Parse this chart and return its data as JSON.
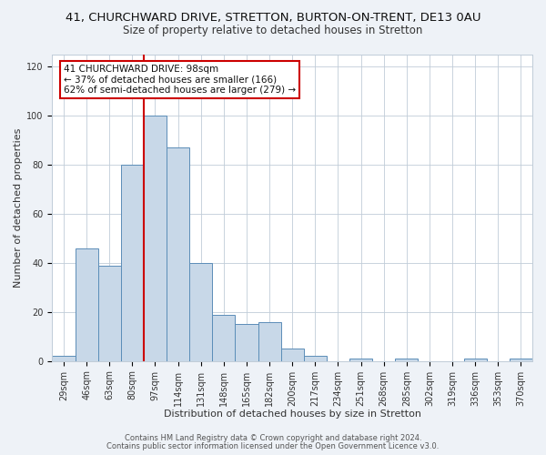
{
  "title": "41, CHURCHWARD DRIVE, STRETTON, BURTON-ON-TRENT, DE13 0AU",
  "subtitle": "Size of property relative to detached houses in Stretton",
  "xlabel": "Distribution of detached houses by size in Stretton",
  "ylabel": "Number of detached properties",
  "bar_labels": [
    "29sqm",
    "46sqm",
    "63sqm",
    "80sqm",
    "97sqm",
    "114sqm",
    "131sqm",
    "148sqm",
    "165sqm",
    "182sqm",
    "200sqm",
    "217sqm",
    "234sqm",
    "251sqm",
    "268sqm",
    "285sqm",
    "302sqm",
    "319sqm",
    "336sqm",
    "353sqm",
    "370sqm"
  ],
  "bar_heights": [
    2,
    46,
    39,
    80,
    100,
    87,
    40,
    19,
    15,
    16,
    5,
    2,
    0,
    1,
    0,
    1,
    0,
    0,
    1,
    0,
    1
  ],
  "bar_color": "#c8d8e8",
  "bar_edge_color": "#5b8db8",
  "annotation_box_text": "41 CHURCHWARD DRIVE: 98sqm\n← 37% of detached houses are smaller (166)\n62% of semi-detached houses are larger (279) →",
  "annotation_box_edge_color": "#cc0000",
  "annotation_box_bg": "#ffffff",
  "vline_color": "#cc0000",
  "vline_x": 3.5,
  "ylim": [
    0,
    125
  ],
  "yticks": [
    0,
    20,
    40,
    60,
    80,
    100,
    120
  ],
  "footer_line1": "Contains HM Land Registry data © Crown copyright and database right 2024.",
  "footer_line2": "Contains public sector information licensed under the Open Government Licence v3.0.",
  "bg_color": "#eef2f7",
  "plot_bg_color": "#ffffff",
  "grid_color": "#c0ccd8",
  "title_fontsize": 9.5,
  "subtitle_fontsize": 8.5,
  "axis_label_fontsize": 8,
  "tick_fontsize": 7,
  "annotation_fontsize": 7.5,
  "footer_fontsize": 6
}
